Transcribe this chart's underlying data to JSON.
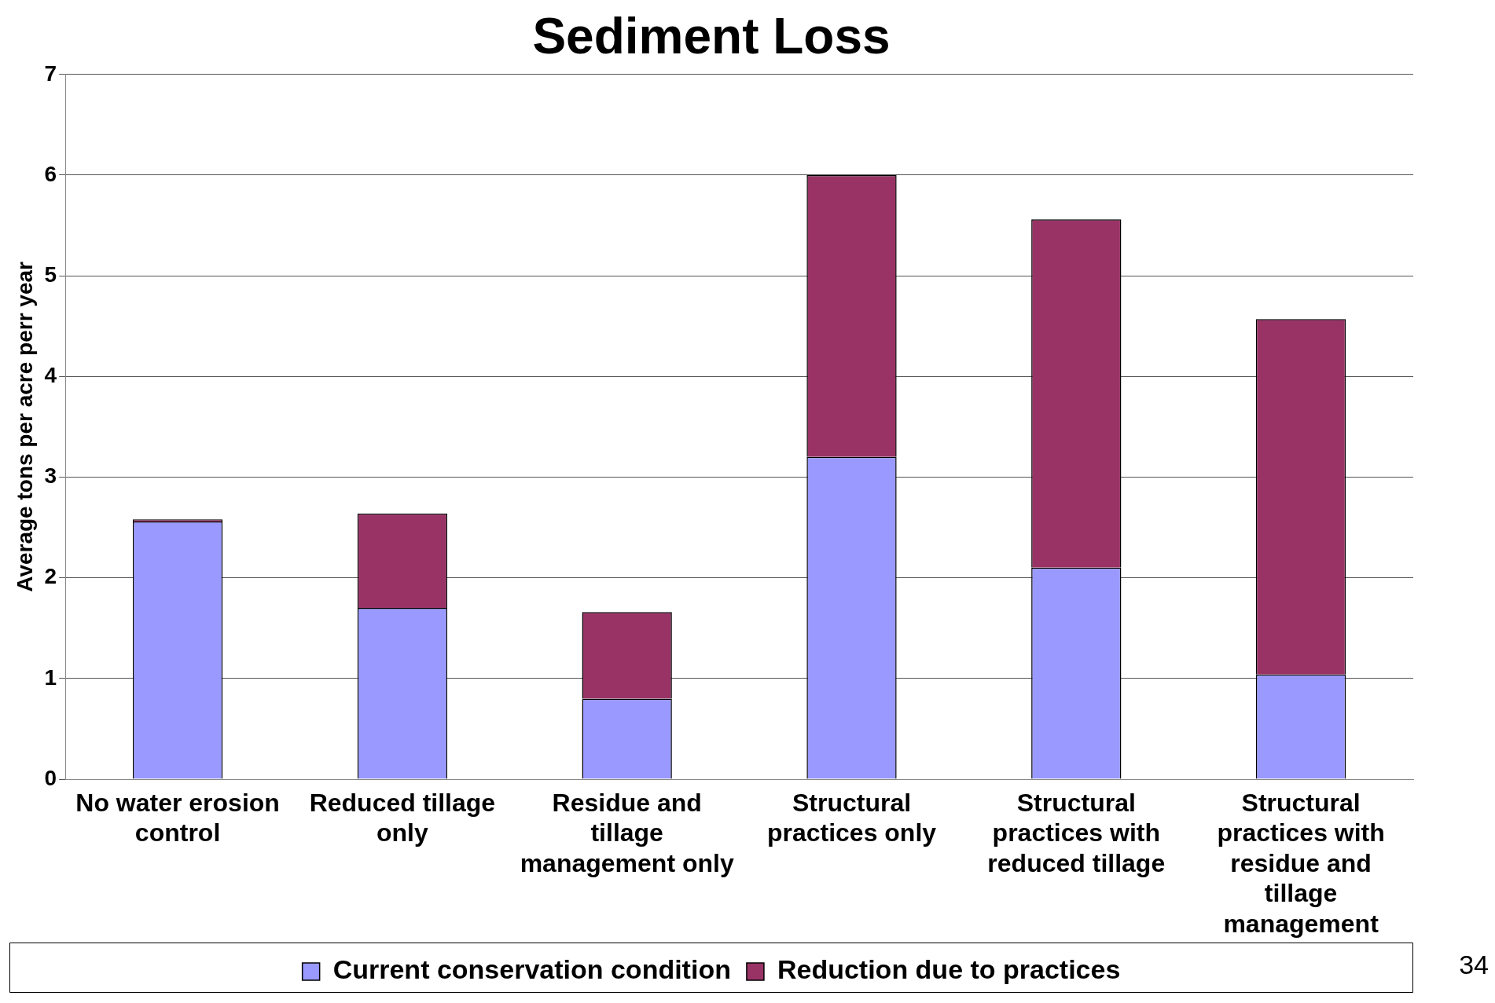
{
  "chart_data": {
    "type": "bar",
    "title": "Sediment Loss",
    "ylabel": "Average tons per acre perr year",
    "categories": [
      "No water erosion control",
      "Reduced tillage only",
      "Residue and tillage management only",
      "Structural practices only",
      "Structural practices with reduced tillage",
      "Structural practices with residue and tillage management"
    ],
    "series": [
      {
        "name": "Current conservation condition",
        "color": "#9999ff",
        "values": [
          2.56,
          1.7,
          0.8,
          3.2,
          2.1,
          1.04
        ]
      },
      {
        "name": "Reduction due to practices",
        "color": "#993366",
        "values": [
          0.02,
          0.94,
          0.86,
          2.8,
          3.46,
          3.53
        ]
      }
    ],
    "stacked": true,
    "ylim": [
      0,
      7
    ],
    "yticks": [
      0,
      1,
      2,
      3,
      4,
      5,
      6,
      7
    ],
    "grid": "y",
    "legend": "bottom",
    "annotations": [
      "34"
    ]
  }
}
